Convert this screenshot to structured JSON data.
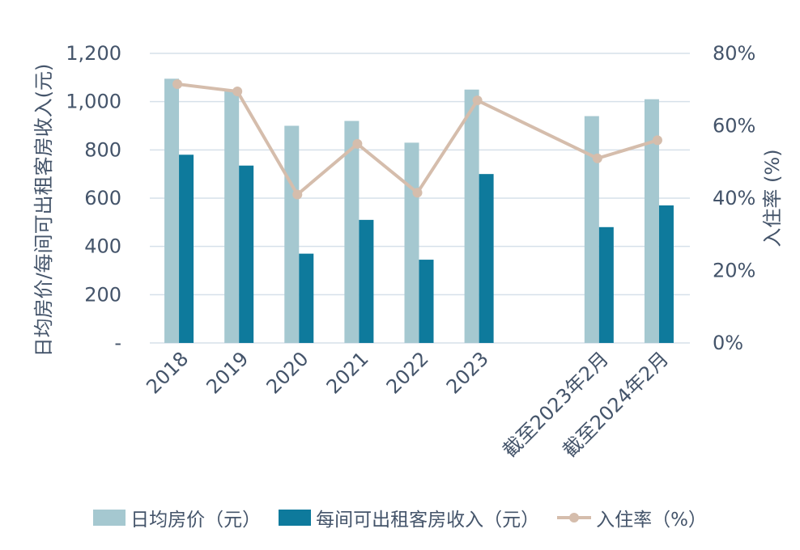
{
  "chart_data": {
    "type": "bar",
    "categories": [
      "2018",
      "2019",
      "2020",
      "2021",
      "2022",
      "2023",
      "截至2023年2月",
      "截至2024年2月"
    ],
    "category_gap_after_index": 5,
    "series": [
      {
        "name": "日均房价（元）",
        "kind": "bar",
        "axis": "left",
        "color": "#A5C8D0",
        "values": [
          1095,
          1045,
          900,
          920,
          830,
          1050,
          940,
          1010
        ]
      },
      {
        "name": "每间可出租客房收入（元）",
        "kind": "bar",
        "axis": "left",
        "color": "#0E7A9C",
        "values": [
          780,
          735,
          370,
          510,
          345,
          700,
          480,
          570
        ]
      },
      {
        "name": "入住率（%）",
        "kind": "line",
        "axis": "right",
        "color": "#D5BDAC",
        "values": [
          71.5,
          69.5,
          41,
          55,
          41.5,
          67,
          51,
          56
        ]
      }
    ],
    "left_axis": {
      "title": "日均房价/每间可出租客房收入(元)",
      "min": 0,
      "max": 1200,
      "ticks": [
        0,
        200,
        400,
        600,
        800,
        1000,
        1200
      ],
      "tick_labels": [
        "-",
        "200",
        "400",
        "600",
        "800",
        "1,000",
        "1,200"
      ]
    },
    "right_axis": {
      "title": "入住率 (%)",
      "min": 0,
      "max": 80,
      "ticks": [
        0,
        20,
        40,
        60,
        80
      ],
      "tick_labels": [
        "0%",
        "20%",
        "40%",
        "60%",
        "80%"
      ]
    },
    "grid": true,
    "legend_position": "bottom"
  },
  "colors": {
    "text": "#44546A",
    "grid": "#D6E0EA"
  }
}
